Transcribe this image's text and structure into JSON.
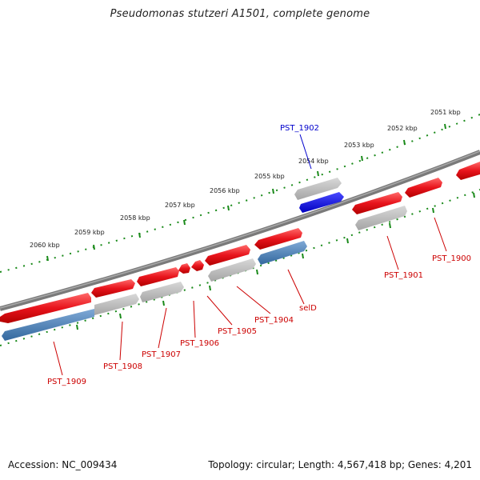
{
  "title": "Pseudomonas stutzeri A1501, complete genome",
  "footer": {
    "accession": "Accession: NC_009434",
    "summary": "Topology: circular; Length: 4,567,418 bp; Genes: 4,201"
  },
  "colors": {
    "forward_cds": "#e8141c",
    "reverse_gene": "#b8b8b8",
    "highlight": "#1414e0",
    "steelblue": "#4a7fb5",
    "backbone": "#7a7a7a",
    "ticks": "#1a8a1a",
    "label_red": "#cc0000",
    "label_blue": "#0000cc"
  },
  "scale_labels": [
    "2051 kbp",
    "2052 kbp",
    "2053 kbp",
    "2054 kbp",
    "2055 kbp",
    "2056 kbp",
    "2057 kbp",
    "2058 kbp",
    "2059 kbp",
    "2060 kbp"
  ],
  "gene_labels": [
    {
      "text": "PST_1902",
      "color": "blue"
    },
    {
      "text": "PST_1900",
      "color": "red"
    },
    {
      "text": "PST_1901",
      "color": "red"
    },
    {
      "text": "selD",
      "color": "red"
    },
    {
      "text": "PST_1904",
      "color": "red"
    },
    {
      "text": "PST_1905",
      "color": "red"
    },
    {
      "text": "PST_1906",
      "color": "red"
    },
    {
      "text": "PST_1907",
      "color": "red"
    },
    {
      "text": "PST_1908",
      "color": "red"
    },
    {
      "text": "PST_1909",
      "color": "red"
    }
  ]
}
